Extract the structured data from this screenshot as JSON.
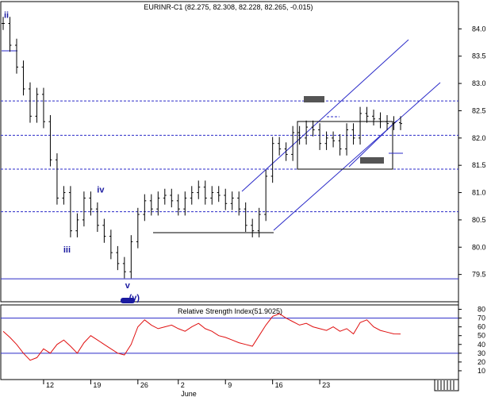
{
  "chart_data": [
    {
      "type": "candlestick",
      "title": "EURINR-C1 (82.275, 82.308, 82.228, 82.265, -0.015)",
      "ylim": [
        79.0,
        84.5
      ],
      "yticks": [
        "84.0",
        "83.5",
        "83.0",
        "82.5",
        "82.0",
        "81.5",
        "81.0",
        "80.5",
        "80.0",
        "79.5"
      ],
      "ytick_values": [
        84.0,
        83.5,
        83.0,
        82.5,
        82.0,
        81.5,
        81.0,
        80.5,
        80.0,
        79.5
      ],
      "xticks": [
        "12",
        "19",
        "26",
        "2",
        "9",
        "16",
        "23"
      ],
      "xtick_index": [
        6,
        13,
        20,
        26,
        33,
        40,
        47
      ],
      "month_label": "June",
      "n_bars": 60,
      "horizontal_levels": [
        82.68,
        82.05,
        81.43,
        80.65,
        79.42
      ],
      "wave_labels": [
        {
          "label": "ii",
          "i": 0,
          "y": 84.2
        },
        {
          "label": "iii",
          "i": 9,
          "y": 79.9
        },
        {
          "label": "iv",
          "i": 14,
          "y": 81.0
        },
        {
          "label": "v",
          "i": 18,
          "y": 79.25
        },
        {
          "label": "(v)",
          "i": 19,
          "y": 79.02
        }
      ],
      "close": [
        84.1,
        83.7,
        83.3,
        82.9,
        82.4,
        82.8,
        82.3,
        81.6,
        80.9,
        81.0,
        80.3,
        80.5,
        80.9,
        80.7,
        80.4,
        80.2,
        79.9,
        79.7,
        79.55,
        80.1,
        80.6,
        80.85,
        80.7,
        80.9,
        80.95,
        80.85,
        80.7,
        80.9,
        81.0,
        81.1,
        80.9,
        81.0,
        80.95,
        80.8,
        80.9,
        80.7,
        80.4,
        80.3,
        80.6,
        81.3,
        81.9,
        81.8,
        81.7,
        82.1,
        82.0,
        82.2,
        82.15,
        81.9,
        82.0,
        81.95,
        81.8,
        82.15,
        82.0,
        82.45,
        82.4,
        82.35,
        82.3,
        82.265,
        82.28,
        82.265
      ],
      "series_rsi": {
        "name": "Relative Strength Index(51.9025)",
        "ylim": [
          0,
          85
        ],
        "yticks": [
          "80",
          "70",
          "60",
          "50",
          "40",
          "30",
          "20",
          "10"
        ],
        "ytick_values": [
          80,
          70,
          60,
          50,
          40,
          30,
          20,
          10
        ],
        "levels": [
          70,
          30
        ],
        "values": [
          55,
          48,
          40,
          30,
          22,
          25,
          35,
          30,
          40,
          45,
          38,
          30,
          42,
          50,
          45,
          40,
          35,
          30,
          28,
          40,
          60,
          68,
          62,
          58,
          60,
          62,
          58,
          55,
          60,
          64,
          58,
          55,
          50,
          48,
          45,
          42,
          40,
          38,
          50,
          62,
          72,
          75,
          70,
          66,
          62,
          64,
          60,
          58,
          56,
          60,
          55,
          58,
          52,
          65,
          68,
          60,
          56,
          54,
          52,
          51.9
        ]
      }
    }
  ]
}
